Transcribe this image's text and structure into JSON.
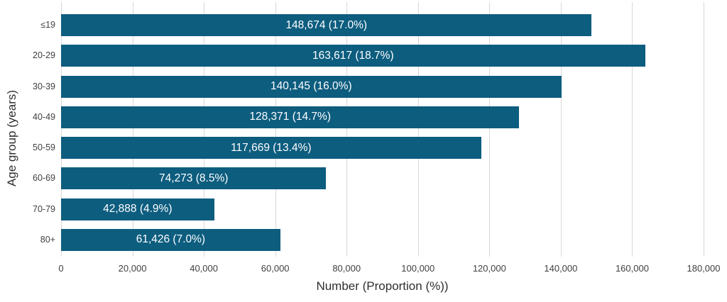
{
  "chart_data": {
    "type": "bar",
    "orientation": "horizontal",
    "title": "",
    "xlabel": "Number (Proportion (%))",
    "ylabel": "Age group (years)",
    "categories": [
      "≤19",
      "20-29",
      "30-39",
      "40-49",
      "50-59",
      "60-69",
      "70-79",
      "80+"
    ],
    "values": [
      148674,
      163617,
      140145,
      128371,
      117669,
      74273,
      42888,
      61426
    ],
    "proportions_pct": [
      17.0,
      18.7,
      16.0,
      14.7,
      13.4,
      8.5,
      4.9,
      7.0
    ],
    "bar_labels": [
      "148,674 (17.0%)",
      "163,617 (18.7%)",
      "140,145 (16.0%)",
      "128,371 (14.7%)",
      "117,669 (13.4%)",
      "74,273 (8.5%)",
      "42,888 (4.9%)",
      "61,426 (7.0%)"
    ],
    "xlim": [
      0,
      180000
    ],
    "x_ticks": [
      0,
      20000,
      40000,
      60000,
      80000,
      100000,
      120000,
      140000,
      160000,
      180000
    ],
    "x_tick_labels": [
      "0",
      "20,000",
      "40,000",
      "60,000",
      "80,000",
      "100,000",
      "120,000",
      "140,000",
      "160,000",
      "180,000"
    ],
    "grid": "vertical",
    "legend": "none",
    "colors": {
      "bar": "#0d5d7f",
      "gridline": "#d8d8d8",
      "tick_text": "#3f3f3f",
      "axis_title_text": "#2e2e2e",
      "bar_label_text": "#ffffff",
      "background": "#ffffff"
    }
  }
}
